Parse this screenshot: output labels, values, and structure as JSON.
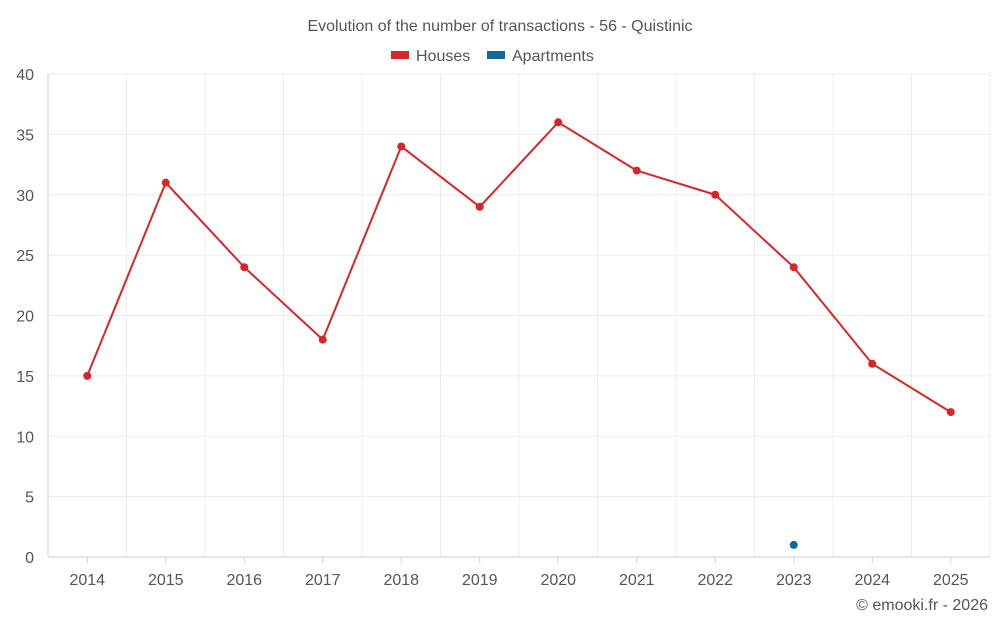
{
  "chart_data": {
    "type": "line",
    "title": "Evolution of the number of transactions - 56 - Quistinic",
    "categories": [
      "2014",
      "2015",
      "2016",
      "2017",
      "2018",
      "2019",
      "2020",
      "2021",
      "2022",
      "2023",
      "2024",
      "2025"
    ],
    "series": [
      {
        "name": "Houses",
        "color": "#d62728",
        "values": [
          15,
          31,
          24,
          18,
          34,
          29,
          36,
          32,
          30,
          24,
          16,
          12
        ]
      },
      {
        "name": "Apartments",
        "color": "#0f6a9a",
        "values": [
          null,
          null,
          null,
          null,
          null,
          null,
          null,
          null,
          null,
          1,
          null,
          null
        ]
      }
    ],
    "ylim": [
      0,
      40
    ],
    "yticks": [
      "0",
      "5",
      "10",
      "15",
      "20",
      "25",
      "30",
      "35",
      "40"
    ],
    "xlabel": "",
    "ylabel": "",
    "grid": true,
    "legend_position": "top-center"
  },
  "footer": {
    "copyright": "© emooki.fr - 2026"
  }
}
